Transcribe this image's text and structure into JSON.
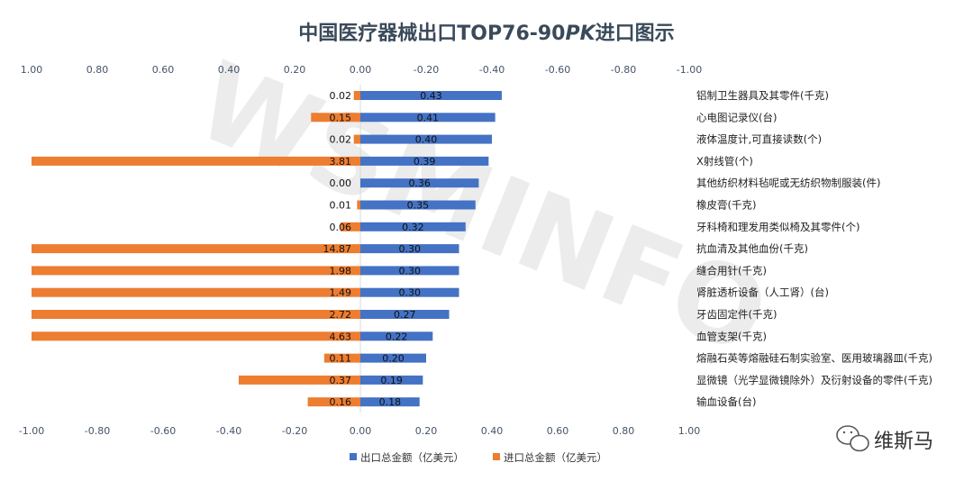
{
  "chart_data": {
    "type": "bar",
    "orientation": "horizontal-diverging",
    "title_main": "中国医疗器械出口TOP76-90",
    "title_pk": "PK",
    "title_tail": "进口图示",
    "x_ticks": [
      "1.00",
      "0.80",
      "0.60",
      "0.40",
      "0.20",
      "0.00",
      "-0.20",
      "-0.40",
      "-0.60",
      "-0.80",
      "-1.00"
    ],
    "x_ticks_bottom": [
      "-1.00",
      "-0.80",
      "-0.60",
      "-0.40",
      "-0.20",
      "0.00",
      "0.20",
      "0.40",
      "0.60",
      "0.80",
      "1.00"
    ],
    "xlim": [
      -1.0,
      1.0
    ],
    "categories": [
      "铝制卫生器具及其零件(千克)",
      "心电图记录仪(台)",
      "液体温度计,可直接读数(个)",
      "X射线管(个)",
      "其他纺织材料毡呢或无纺织物制服装(件)",
      "橡皮膏(千克)",
      "牙科椅和理发用类似椅及其零件(个)",
      "抗血清及其他血份(千克)",
      "缝合用针(千克)",
      "肾脏透析设备（人工肾）(台)",
      "牙齿固定件(千克)",
      "血管支架(千克)",
      "熔融石英等熔融硅石制实验室、医用玻璃器皿(千克)",
      "显微镜（光学显微镜除外）及衍射设备的零件(千克)",
      "输血设备(台)"
    ],
    "series": [
      {
        "name": "出口总金额（亿美元）",
        "color": "#4472c4",
        "values": [
          0.43,
          0.41,
          0.4,
          0.39,
          0.36,
          0.35,
          0.32,
          0.3,
          0.3,
          0.3,
          0.27,
          0.22,
          0.2,
          0.19,
          0.18
        ],
        "labels": [
          "0.43",
          "0.41",
          "0.40",
          "0.39",
          "0.36",
          "0.35",
          "0.32",
          "0.30",
          "0.30",
          "0.30",
          "0.27",
          "0.22",
          "0.20",
          "0.19",
          "0.18"
        ]
      },
      {
        "name": "进口总金额（亿美元）",
        "color": "#ed7d31",
        "values": [
          0.02,
          0.15,
          0.02,
          3.81,
          0.0,
          0.01,
          0.06,
          14.87,
          1.98,
          1.49,
          2.72,
          4.63,
          0.11,
          0.37,
          0.16
        ],
        "labels": [
          "0.02",
          "0.15",
          "0.02",
          "3.81",
          "0.00",
          "0.01",
          "0.06",
          "14.87",
          "1.98",
          "1.49",
          "2.72",
          "4.63",
          "0.11",
          "0.37",
          "0.16"
        ]
      }
    ]
  },
  "watermark": "WSMINFO",
  "brand": {
    "name": "维斯马",
    "icon": "wechat-icon"
  }
}
